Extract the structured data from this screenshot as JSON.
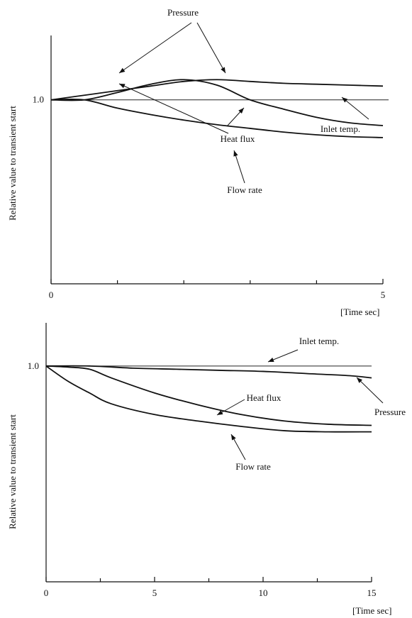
{
  "charts": [
    {
      "type": "line",
      "ylabel": "Relative value to transient start",
      "xlabel": "[Time sec]",
      "x_ticks": [
        0,
        5
      ],
      "y_tick_label": "1.0",
      "xlim": [
        0,
        5
      ],
      "ylim": [
        0.0,
        1.35
      ],
      "reference_line": {
        "name": "Inlet temp.",
        "y": 1.0
      },
      "series": [
        {
          "name": "Pressure",
          "x": [
            0,
            0.5,
            1.0,
            1.5,
            2.0,
            2.5,
            3.0,
            3.5,
            4.0,
            4.5,
            5.0
          ],
          "y": [
            1.0,
            1.025,
            1.05,
            1.075,
            1.1,
            1.11,
            1.1,
            1.09,
            1.085,
            1.08,
            1.075
          ]
        },
        {
          "name": "Heat flux",
          "x": [
            0,
            0.5,
            1.0,
            1.5,
            2.0,
            2.5,
            3.0,
            3.5,
            4.0,
            4.5,
            5.0
          ],
          "y": [
            1.0,
            1.0,
            1.04,
            1.085,
            1.11,
            1.08,
            1.0,
            0.95,
            0.905,
            0.875,
            0.86
          ]
        },
        {
          "name": "Flow rate",
          "x": [
            0,
            0.5,
            1.0,
            1.5,
            2.0,
            2.5,
            3.0,
            3.5,
            4.0,
            4.5,
            5.0
          ],
          "y": [
            1.0,
            1.0,
            0.955,
            0.92,
            0.89,
            0.865,
            0.845,
            0.825,
            0.81,
            0.8,
            0.795
          ]
        }
      ]
    },
    {
      "type": "line",
      "ylabel": "Relative value to transient start",
      "xlabel": "[Time sec]",
      "x_ticks": [
        0,
        5,
        10,
        15
      ],
      "y_tick_label": "1.0",
      "xlim": [
        0,
        15
      ],
      "ylim": [
        0.0,
        1.2
      ],
      "reference_line": {
        "name": "Inlet temp.",
        "y": 1.0
      },
      "series": [
        {
          "name": "Pressure",
          "x": [
            0,
            2,
            4,
            6,
            8,
            10,
            12,
            14,
            15
          ],
          "y": [
            1.0,
            1.0,
            0.99,
            0.985,
            0.98,
            0.975,
            0.965,
            0.955,
            0.945
          ]
        },
        {
          "name": "Heat flux",
          "x": [
            0,
            1,
            2,
            3,
            5,
            7,
            9,
            11,
            13,
            15
          ],
          "y": [
            1.0,
            0.995,
            0.985,
            0.945,
            0.875,
            0.82,
            0.775,
            0.745,
            0.73,
            0.725
          ]
        },
        {
          "name": "Flow rate",
          "x": [
            0,
            1,
            2,
            3,
            5,
            7,
            9,
            11,
            13,
            15
          ],
          "y": [
            1.0,
            0.93,
            0.875,
            0.825,
            0.775,
            0.745,
            0.72,
            0.7,
            0.695,
            0.695
          ]
        }
      ]
    }
  ]
}
